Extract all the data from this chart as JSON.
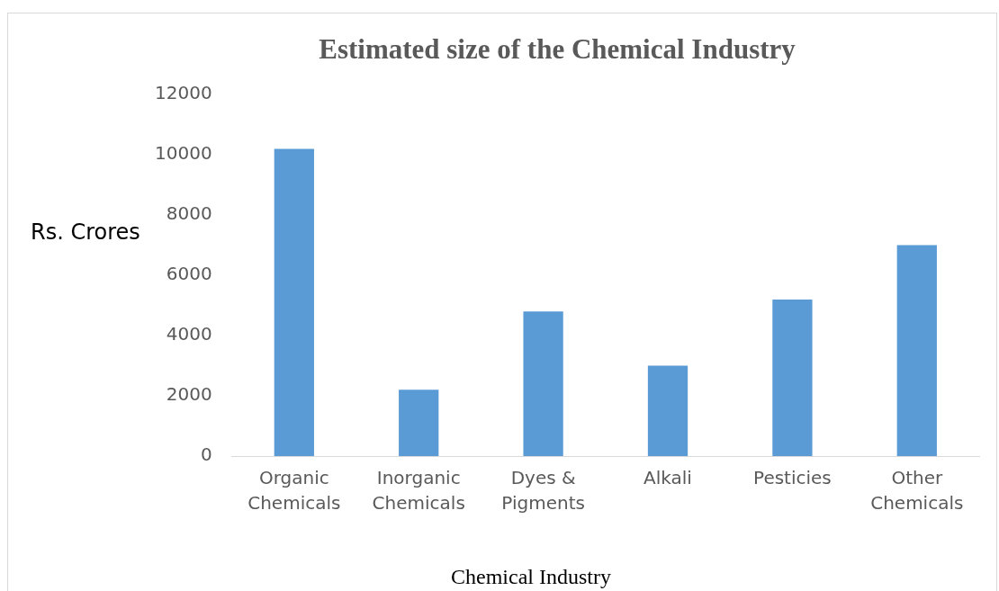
{
  "chart_data": {
    "type": "bar",
    "title": "Estimated size of the Chemical Industry",
    "xlabel": "Chemical Industry",
    "ylabel": "Rs. Crores",
    "categories": [
      "Organic Chemicals",
      "Inorganic Chemicals",
      "Dyes & Pigments",
      "Alkali",
      "Pesticies",
      "Other Chemicals"
    ],
    "values": [
      10200,
      2200,
      4800,
      3000,
      5200,
      7000
    ],
    "color": "#5b9bd5",
    "ylim": [
      0,
      12000
    ],
    "yticks": [
      0,
      2000,
      4000,
      6000,
      8000,
      10000,
      12000
    ],
    "grid": false,
    "legend": false
  }
}
